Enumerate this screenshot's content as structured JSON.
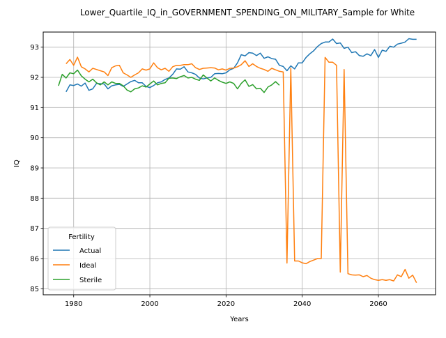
{
  "chart_data": {
    "type": "line",
    "title": "Lower_Quartile_IQ_in_GOVERNMENT_SPENDING_ON_MILITARY_Sample for White",
    "xlabel": "Years",
    "ylabel": "IQ",
    "xlim": [
      1972,
      2075
    ],
    "ylim": [
      84.8,
      93.5
    ],
    "x_ticks": [
      1980,
      2000,
      2020,
      2040,
      2060
    ],
    "y_ticks": [
      85,
      86,
      87,
      88,
      89,
      90,
      91,
      92,
      93
    ],
    "grid": true,
    "legend": {
      "title": "Fertility",
      "position": "lower-left"
    },
    "series": [
      {
        "name": "Actual",
        "color": "#1f77b4",
        "x": [
          1978,
          1979,
          1980,
          1981,
          1982,
          1983,
          1984,
          1985,
          1986,
          1987,
          1988,
          1989,
          1990,
          1991,
          1992,
          1993,
          1994,
          1995,
          1996,
          1997,
          1998,
          1999,
          2000,
          2001,
          2002,
          2003,
          2004,
          2005,
          2006,
          2007,
          2008,
          2009,
          2010,
          2011,
          2012,
          2013,
          2014,
          2015,
          2016,
          2017,
          2018,
          2019,
          2020,
          2021,
          2022,
          2023,
          2024,
          2025,
          2026,
          2027,
          2028,
          2029,
          2030,
          2031,
          2032,
          2033,
          2034,
          2035,
          2036,
          2037,
          2038,
          2039,
          2040,
          2041,
          2042,
          2043,
          2044,
          2045,
          2046,
          2047,
          2048,
          2049,
          2050,
          2051,
          2052,
          2053,
          2054,
          2055,
          2056,
          2057,
          2058,
          2059,
          2060,
          2061,
          2062,
          2063,
          2064,
          2065,
          2066,
          2067,
          2068,
          2069,
          2070
        ],
        "values": [
          91.52,
          91.75,
          91.73,
          91.78,
          91.71,
          91.81,
          91.57,
          91.62,
          91.8,
          91.79,
          91.78,
          91.62,
          91.72,
          91.75,
          91.77,
          91.7,
          91.78,
          91.86,
          91.9,
          91.82,
          91.82,
          91.7,
          91.66,
          91.73,
          91.82,
          91.85,
          91.93,
          91.98,
          92.1,
          92.28,
          92.27,
          92.35,
          92.18,
          92.15,
          92.1,
          91.98,
          91.95,
          91.98,
          92.0,
          92.12,
          92.13,
          92.12,
          92.15,
          92.25,
          92.3,
          92.48,
          92.75,
          92.71,
          92.82,
          92.8,
          92.72,
          92.8,
          92.63,
          92.68,
          92.62,
          92.6,
          92.4,
          92.36,
          92.22,
          92.38,
          92.28,
          92.48,
          92.48,
          92.66,
          92.78,
          92.88,
          93.02,
          93.12,
          93.17,
          93.17,
          93.27,
          93.12,
          93.14,
          92.96,
          93.0,
          92.82,
          92.85,
          92.72,
          92.7,
          92.78,
          92.72,
          92.92,
          92.66,
          92.9,
          92.86,
          93.03,
          93.0,
          93.1,
          93.13,
          93.17,
          93.28,
          93.26,
          93.26
        ]
      },
      {
        "name": "Ideal",
        "color": "#ff7f0e",
        "x": [
          1978,
          1979,
          1980,
          1981,
          1982,
          1983,
          1984,
          1985,
          1986,
          1987,
          1988,
          1989,
          1990,
          1991,
          1992,
          1993,
          1994,
          1995,
          1996,
          1997,
          1998,
          1999,
          2000,
          2001,
          2002,
          2003,
          2004,
          2005,
          2006,
          2007,
          2008,
          2009,
          2010,
          2011,
          2012,
          2013,
          2014,
          2015,
          2016,
          2017,
          2018,
          2019,
          2020,
          2021,
          2022,
          2023,
          2024,
          2025,
          2026,
          2027,
          2028,
          2029,
          2030,
          2031,
          2032,
          2033,
          2034,
          2035,
          2036,
          2037,
          2038,
          2039,
          2040,
          2041,
          2042,
          2043,
          2044,
          2045,
          2046,
          2047,
          2048,
          2049,
          2050,
          2051,
          2052,
          2053,
          2054,
          2055,
          2056,
          2057,
          2058,
          2059,
          2060,
          2061,
          2062,
          2063,
          2064,
          2065,
          2066,
          2067,
          2068,
          2069,
          2070
        ],
        "values": [
          92.45,
          92.59,
          92.4,
          92.67,
          92.35,
          92.28,
          92.18,
          92.3,
          92.26,
          92.22,
          92.18,
          92.06,
          92.32,
          92.38,
          92.4,
          92.15,
          92.08,
          92.0,
          92.08,
          92.15,
          92.28,
          92.24,
          92.28,
          92.48,
          92.32,
          92.25,
          92.3,
          92.2,
          92.35,
          92.4,
          92.4,
          92.42,
          92.42,
          92.45,
          92.32,
          92.26,
          92.3,
          92.31,
          92.32,
          92.31,
          92.25,
          92.28,
          92.24,
          92.3,
          92.31,
          92.35,
          92.42,
          92.55,
          92.36,
          92.45,
          92.36,
          92.3,
          92.26,
          92.2,
          92.3,
          92.25,
          92.2,
          92.18,
          85.85,
          92.3,
          85.92,
          85.92,
          85.86,
          85.83,
          85.9,
          85.95,
          86.0,
          86.0,
          92.66,
          92.5,
          92.5,
          92.4,
          85.55,
          92.26,
          85.5,
          85.46,
          85.45,
          85.46,
          85.4,
          85.44,
          85.35,
          85.3,
          85.28,
          85.3,
          85.28,
          85.3,
          85.26,
          85.46,
          85.4,
          85.64,
          85.35,
          85.45,
          85.2
        ]
      },
      {
        "name": "Sterile",
        "color": "#2ca02c",
        "x": [
          1976,
          1977,
          1978,
          1979,
          1980,
          1981,
          1982,
          1983,
          1984,
          1985,
          1986,
          1987,
          1988,
          1989,
          1990,
          1991,
          1992,
          1993,
          1994,
          1995,
          1996,
          1997,
          1998,
          1999,
          2000,
          2001,
          2002,
          2003,
          2004,
          2005,
          2006,
          2007,
          2008,
          2009,
          2010,
          2011,
          2012,
          2013,
          2014,
          2015,
          2016,
          2017,
          2018,
          2019,
          2020,
          2021,
          2022,
          2023,
          2024,
          2025,
          2026,
          2027,
          2028,
          2029,
          2030,
          2031,
          2032,
          2033,
          2034
        ],
        "values": [
          91.72,
          92.1,
          91.98,
          92.15,
          92.12,
          92.24,
          92.05,
          91.94,
          91.85,
          91.94,
          91.82,
          91.75,
          91.85,
          91.75,
          91.85,
          91.8,
          91.8,
          91.72,
          91.58,
          91.52,
          91.62,
          91.65,
          91.72,
          91.68,
          91.78,
          91.88,
          91.75,
          91.8,
          91.82,
          91.97,
          91.98,
          91.96,
          92.02,
          92.06,
          91.98,
          92.0,
          91.94,
          91.9,
          92.08,
          91.98,
          91.88,
          91.98,
          91.9,
          91.84,
          91.8,
          91.85,
          91.8,
          91.62,
          91.8,
          91.92,
          91.7,
          91.76,
          91.62,
          91.64,
          91.5,
          91.68,
          91.75,
          91.86,
          91.74
        ]
      }
    ]
  }
}
